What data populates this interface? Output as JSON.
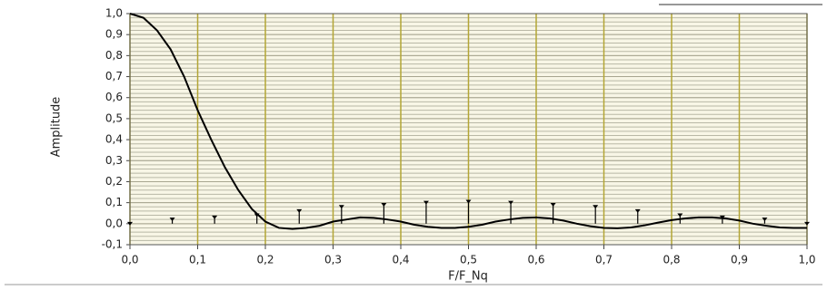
{
  "chart_data": {
    "type": "line",
    "xlabel": "F/F_Nq",
    "ylabel": "Amplitude",
    "xlim": [
      0,
      1
    ],
    "ylim": [
      -0.1,
      1
    ],
    "grid": true,
    "xticks": [
      {
        "value": 0,
        "label": "0,0"
      },
      {
        "value": 0.1,
        "label": "0,1"
      },
      {
        "value": 0.2,
        "label": "0,2"
      },
      {
        "value": 0.3,
        "label": "0,3"
      },
      {
        "value": 0.4,
        "label": "0,4"
      },
      {
        "value": 0.5,
        "label": "0,5"
      },
      {
        "value": 0.6,
        "label": "0,6"
      },
      {
        "value": 0.7,
        "label": "0,7"
      },
      {
        "value": 0.8,
        "label": "0,8"
      },
      {
        "value": 0.9,
        "label": "0,9"
      },
      {
        "value": 1,
        "label": "1,0"
      }
    ],
    "yticks": [
      {
        "value": -0.1,
        "label": "-0,1"
      },
      {
        "value": 0,
        "label": "0,0"
      },
      {
        "value": 0.1,
        "label": "0,1"
      },
      {
        "value": 0.2,
        "label": "0,2"
      },
      {
        "value": 0.3,
        "label": "0,3"
      },
      {
        "value": 0.4,
        "label": "0,4"
      },
      {
        "value": 0.5,
        "label": "0,5"
      },
      {
        "value": 0.6,
        "label": "0,6"
      },
      {
        "value": 0.7,
        "label": "0,7"
      },
      {
        "value": 0.8,
        "label": "0,8"
      },
      {
        "value": 0.9,
        "label": "0,9"
      },
      {
        "value": 1,
        "label": "1,0"
      }
    ],
    "series": [
      {
        "type": "line",
        "color": "#000000",
        "x": [
          0,
          0.02,
          0.04,
          0.06,
          0.08,
          0.1,
          0.12,
          0.14,
          0.16,
          0.18,
          0.2,
          0.22,
          0.24,
          0.26,
          0.28,
          0.3,
          0.32,
          0.34,
          0.36,
          0.38,
          0.4,
          0.42,
          0.44,
          0.46,
          0.48,
          0.5,
          0.52,
          0.54,
          0.56,
          0.58,
          0.6,
          0.62,
          0.64,
          0.66,
          0.68,
          0.7,
          0.72,
          0.74,
          0.76,
          0.78,
          0.8,
          0.82,
          0.84,
          0.86,
          0.88,
          0.9,
          0.92,
          0.94,
          0.96,
          0.98,
          1
        ],
        "values": [
          1.0,
          0.98,
          0.92,
          0.83,
          0.7,
          0.54,
          0.4,
          0.27,
          0.16,
          0.07,
          0.01,
          -0.02,
          -0.025,
          -0.02,
          -0.01,
          0.01,
          0.02,
          0.03,
          0.028,
          0.02,
          0.01,
          -0.005,
          -0.015,
          -0.02,
          -0.02,
          -0.015,
          -0.005,
          0.01,
          0.02,
          0.028,
          0.03,
          0.025,
          0.015,
          0.0,
          -0.012,
          -0.02,
          -0.022,
          -0.018,
          -0.008,
          0.005,
          0.017,
          0.025,
          0.03,
          0.03,
          0.025,
          0.015,
          0.0,
          -0.01,
          -0.018,
          -0.02,
          -0.02
        ]
      },
      {
        "type": "stem",
        "color": "#000000",
        "x": [
          0,
          0.0625,
          0.125,
          0.1875,
          0.25,
          0.3125,
          0.375,
          0.4375,
          0.5,
          0.5625,
          0.625,
          0.6875,
          0.75,
          0.8125,
          0.875,
          0.9375,
          1
        ],
        "values": [
          0,
          0.02,
          0.03,
          0.04,
          0.06,
          0.08,
          0.09,
          0.1,
          0.105,
          0.1,
          0.09,
          0.08,
          0.06,
          0.04,
          0.03,
          0.02,
          0
        ]
      }
    ]
  }
}
